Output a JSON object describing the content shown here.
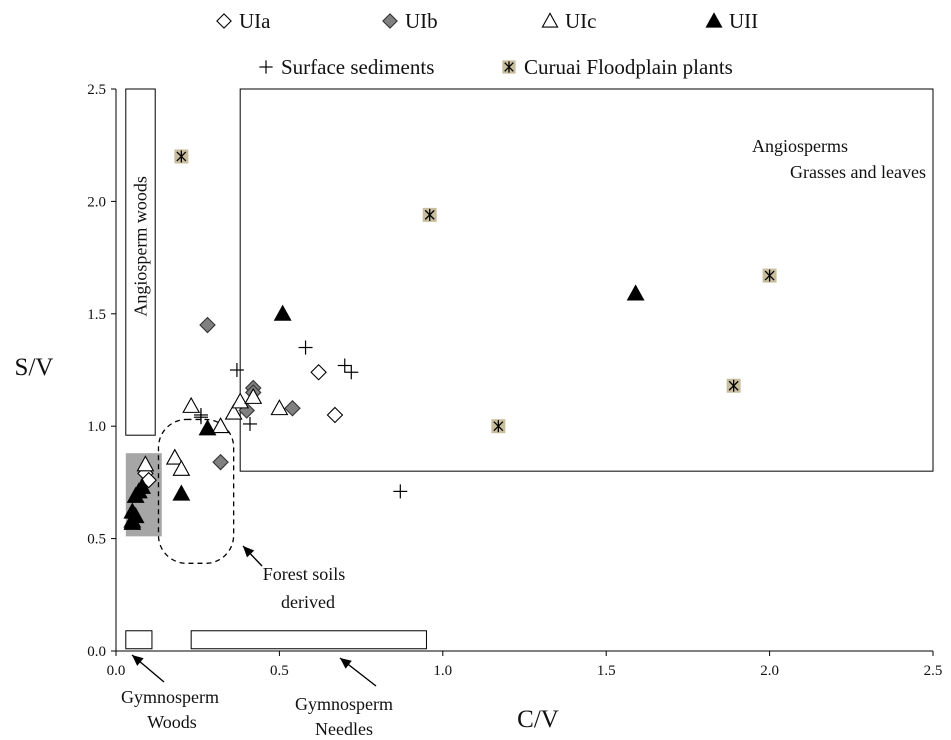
{
  "chart_data": {
    "type": "scatter",
    "xlabel": "C/V",
    "ylabel": "S/V",
    "xlim": [
      0,
      2.5
    ],
    "ylim": [
      0,
      2.5
    ],
    "xticks": [
      "0.0",
      "0.5",
      "1.0",
      "1.5",
      "2.0",
      "2.5"
    ],
    "yticks": [
      "0.0",
      "0.5",
      "1.0",
      "1.5",
      "2.0",
      "2.5"
    ],
    "grid": false,
    "legend_position": "top",
    "series": [
      {
        "name": "UIa",
        "marker": "diamond-open",
        "points": [
          [
            0.62,
            1.24
          ],
          [
            0.67,
            1.05
          ],
          [
            0.09,
            0.79
          ],
          [
            0.1,
            0.76
          ]
        ]
      },
      {
        "name": "UIb",
        "marker": "diamond-filled",
        "color": "#808080",
        "points": [
          [
            0.28,
            1.45
          ],
          [
            0.42,
            1.17
          ],
          [
            0.4,
            1.07
          ],
          [
            0.54,
            1.08
          ],
          [
            0.32,
            0.84
          ],
          [
            0.42,
            1.15
          ]
        ]
      },
      {
        "name": "UIc",
        "marker": "triangle-open",
        "points": [
          [
            0.23,
            1.09
          ],
          [
            0.32,
            1.0
          ],
          [
            0.36,
            1.06
          ],
          [
            0.38,
            1.11
          ],
          [
            0.42,
            1.13
          ],
          [
            0.5,
            1.08
          ],
          [
            0.18,
            0.86
          ],
          [
            0.2,
            0.81
          ],
          [
            0.09,
            0.83
          ]
        ]
      },
      {
        "name": "UII",
        "marker": "triangle-filled",
        "color": "#000000",
        "points": [
          [
            0.51,
            1.5
          ],
          [
            0.28,
            0.99
          ],
          [
            0.2,
            0.7
          ],
          [
            1.59,
            1.59
          ],
          [
            0.07,
            0.71
          ],
          [
            0.08,
            0.73
          ],
          [
            0.06,
            0.69
          ],
          [
            0.05,
            0.62
          ],
          [
            0.05,
            0.58
          ],
          [
            0.06,
            0.6
          ],
          [
            0.05,
            0.57
          ]
        ]
      },
      {
        "name": "Surface sediments",
        "marker": "plus",
        "points": [
          [
            0.37,
            1.25
          ],
          [
            0.58,
            1.35
          ],
          [
            0.7,
            1.27
          ],
          [
            0.72,
            1.24
          ],
          [
            0.26,
            1.04
          ],
          [
            0.41,
            1.01
          ],
          [
            0.87,
            0.71
          ],
          [
            0.26,
            1.05
          ]
        ]
      },
      {
        "name": "Curuai Floodplain plants",
        "marker": "star-box",
        "color": "#c8bd9c",
        "points": [
          [
            0.2,
            2.2
          ],
          [
            0.96,
            1.94
          ],
          [
            2.0,
            1.67
          ],
          [
            1.89,
            1.18
          ],
          [
            1.17,
            1.0
          ]
        ]
      }
    ],
    "annotations": {
      "angiosperm_woods": "Angiosperm woods",
      "angiosperms_line1": "Angiosperms",
      "angiosperms_line2": "Grasses and leaves",
      "forest_soils_line1": "Forest soils",
      "forest_soils_line2": "derived",
      "gymno_woods_line1": "Gymnosperm",
      "gymno_woods_line2": "Woods",
      "gymno_needles_line1": "Gymnosperm",
      "gymno_needles_line2": "Needles"
    },
    "region_boxes": [
      {
        "name": "angiosperm-woods-box",
        "x": [
          0.03,
          0.12
        ],
        "y": [
          0.96,
          2.5
        ]
      },
      {
        "name": "angiosperms-grasses-box",
        "x": [
          0.38,
          2.5
        ],
        "y": [
          0.8,
          2.5
        ]
      },
      {
        "name": "gymnosperm-woods-box",
        "x": [
          0.03,
          0.11
        ],
        "y": [
          0.01,
          0.09
        ]
      },
      {
        "name": "gymnosperm-needles-box",
        "x": [
          0.23,
          0.95
        ],
        "y": [
          0.01,
          0.09
        ]
      },
      {
        "name": "gray-cluster-box",
        "x": [
          0.03,
          0.14
        ],
        "y": [
          0.51,
          0.88
        ]
      }
    ],
    "colors": {
      "gray_region": "#a6a6a6",
      "uib_fill": "#808080",
      "curuai_fill": "#c8bd9c"
    }
  }
}
